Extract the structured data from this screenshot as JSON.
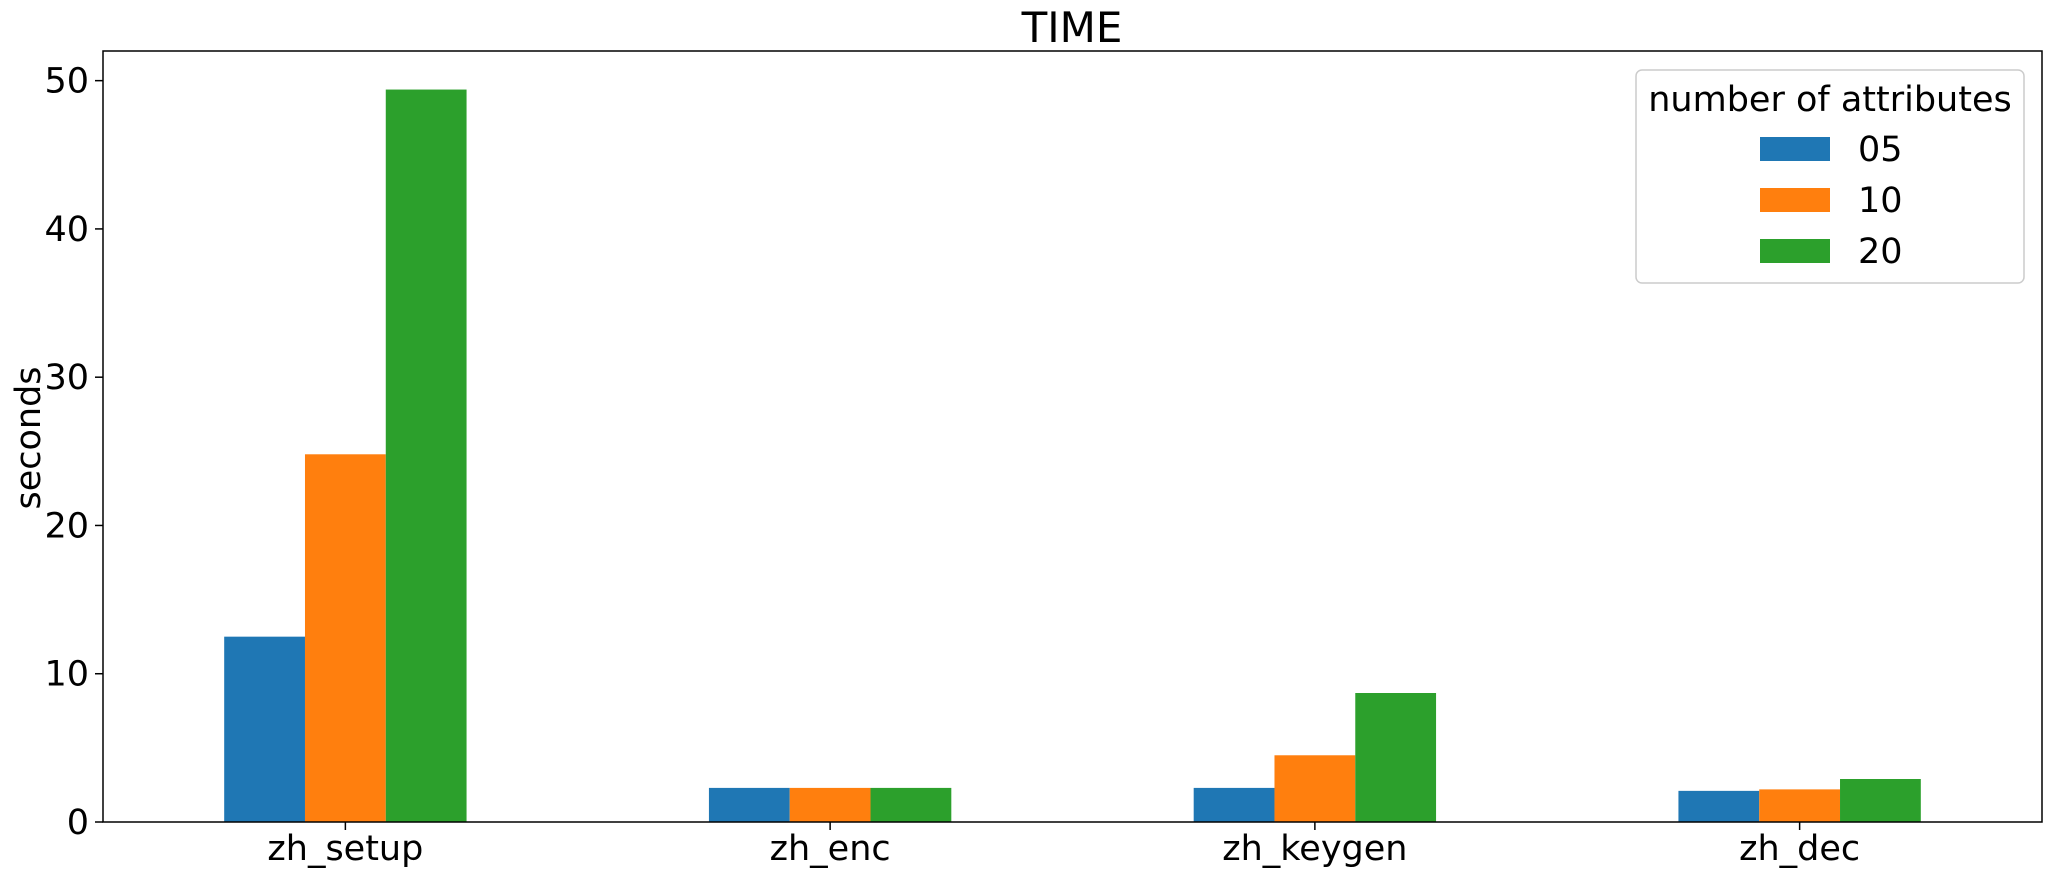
{
  "chart_data": {
    "type": "bar",
    "title": "TIME",
    "xlabel": "",
    "ylabel": "seconds",
    "categories": [
      "zh_setup",
      "zh_enc",
      "zh_keygen",
      "zh_dec"
    ],
    "series": [
      {
        "name": "05",
        "color": "#1f77b4",
        "values": [
          12.5,
          2.3,
          2.3,
          2.1
        ]
      },
      {
        "name": "10",
        "color": "#ff7f0e",
        "values": [
          24.8,
          2.3,
          4.5,
          2.2
        ]
      },
      {
        "name": "20",
        "color": "#2ca02c",
        "values": [
          49.4,
          2.3,
          8.7,
          2.9
        ]
      }
    ],
    "ylim": [
      0,
      52
    ],
    "yticks": [
      0,
      10,
      20,
      30,
      40,
      50
    ],
    "grid": false,
    "legend": {
      "title": "number of attributes",
      "placement": "top-right"
    }
  }
}
